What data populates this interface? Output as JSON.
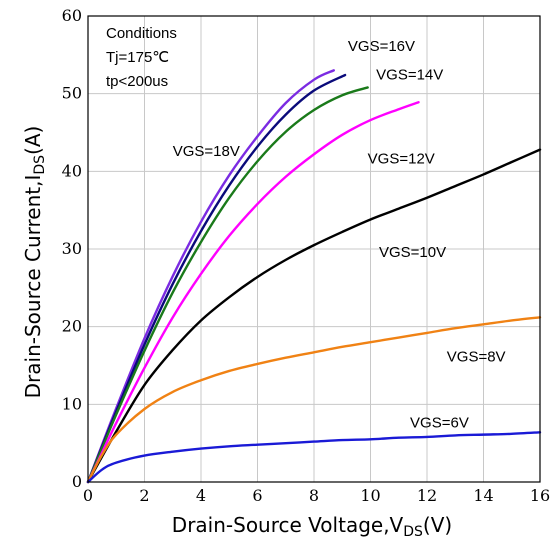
{
  "chart_data": {
    "type": "line",
    "xlabel": {
      "main": "Drain-Source Voltage,V",
      "sub": "DS",
      "unit": "(V)"
    },
    "ylabel": {
      "main": "Drain-Source Current,I",
      "sub": "DS",
      "unit": "(A)"
    },
    "xlim": [
      0,
      16
    ],
    "ylim": [
      0,
      60
    ],
    "x_ticks": [
      0,
      2,
      4,
      6,
      8,
      10,
      12,
      14,
      16
    ],
    "y_ticks": [
      0,
      10,
      20,
      30,
      40,
      50,
      60
    ],
    "grid": true,
    "conditions": [
      "Conditions",
      "Tj=175℃",
      "tp<200us"
    ],
    "series": [
      {
        "name": "VGS=18V",
        "color": "#7b2be2",
        "label_at": [
          3.0,
          42.0
        ],
        "points": [
          [
            0,
            0
          ],
          [
            0.5,
            4.8
          ],
          [
            1,
            9.5
          ],
          [
            2,
            18.5
          ],
          [
            3,
            26.5
          ],
          [
            4,
            33.5
          ],
          [
            5,
            39.5
          ],
          [
            6,
            44.5
          ],
          [
            7,
            48.8
          ],
          [
            8,
            51.8
          ],
          [
            8.7,
            53.0
          ]
        ]
      },
      {
        "name": "VGS=16V",
        "color": "#0a0a7a",
        "label_at": [
          9.2,
          55.5
        ],
        "points": [
          [
            0,
            0
          ],
          [
            0.5,
            4.6
          ],
          [
            1,
            9.1
          ],
          [
            2,
            17.7
          ],
          [
            3,
            25.5
          ],
          [
            4,
            32.3
          ],
          [
            5,
            38.2
          ],
          [
            6,
            43.2
          ],
          [
            7,
            47.3
          ],
          [
            8,
            50.4
          ],
          [
            9.1,
            52.4
          ]
        ]
      },
      {
        "name": "VGS=14V",
        "color": "#1a7a1a",
        "label_at": [
          10.2,
          51.8
        ],
        "points": [
          [
            0,
            0
          ],
          [
            0.5,
            4.4
          ],
          [
            1,
            8.7
          ],
          [
            2,
            16.9
          ],
          [
            3,
            24.4
          ],
          [
            4,
            30.9
          ],
          [
            5,
            36.6
          ],
          [
            6,
            41.3
          ],
          [
            7,
            45.1
          ],
          [
            8,
            47.9
          ],
          [
            9,
            49.8
          ],
          [
            9.9,
            50.8
          ]
        ]
      },
      {
        "name": "VGS=12V",
        "color": "#ff00ff",
        "label_at": [
          9.9,
          41.0
        ],
        "points": [
          [
            0,
            0
          ],
          [
            0.5,
            3.8
          ],
          [
            1,
            7.6
          ],
          [
            2,
            14.7
          ],
          [
            3,
            21.2
          ],
          [
            4,
            26.8
          ],
          [
            5,
            31.7
          ],
          [
            6,
            35.8
          ],
          [
            7,
            39.3
          ],
          [
            8,
            42.2
          ],
          [
            9,
            44.7
          ],
          [
            10,
            46.6
          ],
          [
            11,
            48.0
          ],
          [
            11.7,
            48.9
          ]
        ]
      },
      {
        "name": "VGS=10V",
        "color": "#000000",
        "label_at": [
          10.3,
          29.0
        ],
        "points": [
          [
            0,
            0
          ],
          [
            1,
            6.5
          ],
          [
            2,
            12.5
          ],
          [
            3,
            17.0
          ],
          [
            4,
            20.8
          ],
          [
            5,
            23.8
          ],
          [
            6,
            26.4
          ],
          [
            7,
            28.6
          ],
          [
            8,
            30.5
          ],
          [
            9,
            32.2
          ],
          [
            10,
            33.8
          ],
          [
            11,
            35.2
          ],
          [
            12,
            36.6
          ],
          [
            13,
            38.1
          ],
          [
            14,
            39.6
          ],
          [
            15,
            41.2
          ],
          [
            16,
            42.8
          ]
        ]
      },
      {
        "name": "VGS=8V",
        "color": "#f08214",
        "label_at": [
          12.7,
          15.5
        ],
        "points": [
          [
            0,
            0
          ],
          [
            0.5,
            3.5
          ],
          [
            1,
            6.1
          ],
          [
            2,
            9.4
          ],
          [
            3,
            11.6
          ],
          [
            4,
            13.1
          ],
          [
            5,
            14.3
          ],
          [
            6,
            15.2
          ],
          [
            7,
            16.0
          ],
          [
            8,
            16.7
          ],
          [
            9,
            17.4
          ],
          [
            10,
            18.0
          ],
          [
            11,
            18.6
          ],
          [
            12,
            19.2
          ],
          [
            13,
            19.8
          ],
          [
            14,
            20.3
          ],
          [
            15,
            20.8
          ],
          [
            16,
            21.2
          ]
        ]
      },
      {
        "name": "VGS=6V",
        "color": "#1a1ad6",
        "label_at": [
          11.4,
          7.0
        ],
        "points": [
          [
            0,
            0
          ],
          [
            0.5,
            1.6
          ],
          [
            1,
            2.5
          ],
          [
            2,
            3.4
          ],
          [
            3,
            3.9
          ],
          [
            4,
            4.3
          ],
          [
            5,
            4.6
          ],
          [
            6,
            4.8
          ],
          [
            7,
            5.0
          ],
          [
            8,
            5.2
          ],
          [
            9,
            5.4
          ],
          [
            10,
            5.5
          ],
          [
            11,
            5.7
          ],
          [
            12,
            5.8
          ],
          [
            13,
            6.0
          ],
          [
            14,
            6.1
          ],
          [
            15,
            6.2
          ],
          [
            16,
            6.4
          ]
        ]
      }
    ]
  }
}
